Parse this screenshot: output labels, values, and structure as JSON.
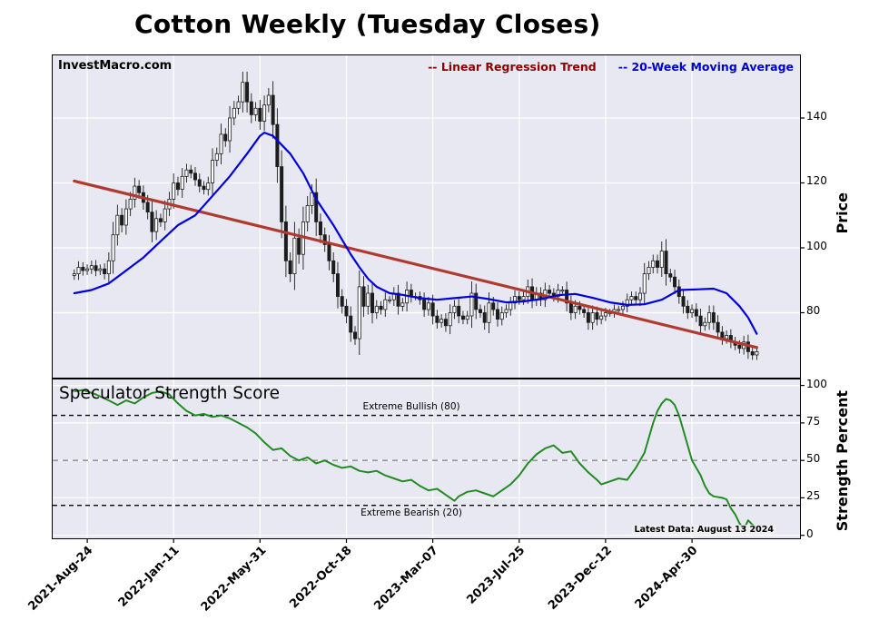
{
  "title": "Cotton Weekly (Tuesday Closes)",
  "watermark": "InvestMacro.com",
  "legend": {
    "trend_label": "-- Linear Regression Trend",
    "trend_color": "#8b0000",
    "ma_label": "-- 20-Week Moving Average",
    "ma_color": "#0000cd"
  },
  "axes": {
    "price_label": "Price",
    "strength_label": "Strength Percent"
  },
  "strength_panel": {
    "title": "Speculator Strength Score",
    "bullish_label": "Extreme Bullish (80)",
    "bearish_label": "Extreme Bearish (20)",
    "latest_note": "Latest Data: August 13 2024"
  },
  "colors": {
    "panel_bg": "#e8e8f2",
    "grid": "#ffffff",
    "candle_up": "#ffffff",
    "candle_down": "#1c1c1c",
    "tick": "#000000"
  },
  "chart_data": [
    {
      "type": "candlestick",
      "name": "Cotton weekly price (Tuesday closes)",
      "ylabel": "Price",
      "ylim": [
        60,
        159.3
      ],
      "yticks": [
        80,
        100,
        120,
        140
      ],
      "x_unit": "week-index",
      "x_tick_weeks": [
        3,
        23,
        43,
        63,
        83,
        103,
        123,
        143
      ],
      "x_tick_labels": [
        "2021-Aug-24",
        "2022-Jan-11",
        "2022-May-31",
        "2022-Oct-18",
        "2023-Mar-07",
        "2023-Jul-25",
        "2023-Dec-12",
        "2024-Apr-30"
      ],
      "closes": [
        92,
        94,
        93,
        93.5,
        94.5,
        93,
        93.5,
        92,
        96,
        104,
        110,
        107,
        112,
        115,
        119,
        117,
        114,
        111,
        105,
        109,
        108,
        112,
        115,
        120,
        118,
        122,
        124,
        123,
        121,
        119,
        118,
        120,
        127,
        129,
        135,
        133,
        140,
        143,
        145,
        151,
        145,
        141,
        143,
        139,
        144,
        147,
        138,
        125,
        108,
        96,
        92,
        103,
        98,
        108,
        113,
        117,
        108,
        104,
        101,
        96,
        92,
        85,
        82,
        79,
        74,
        72,
        88,
        82,
        86,
        80,
        82,
        81,
        84,
        84,
        86,
        82,
        83,
        87,
        85,
        85,
        84,
        81,
        83,
        79,
        77,
        78,
        76,
        80,
        82,
        79,
        78,
        79,
        86,
        81,
        80,
        77,
        83,
        81,
        78,
        80,
        81,
        83,
        85,
        84,
        85,
        88,
        84,
        86,
        84,
        87,
        86,
        85,
        87,
        87,
        83,
        80,
        82,
        81,
        80,
        77,
        80,
        78,
        79,
        80,
        80,
        81,
        81,
        82,
        84,
        85,
        84,
        86,
        92,
        94,
        96,
        94,
        99,
        92,
        91,
        88,
        85,
        82,
        80,
        81,
        79,
        76,
        77,
        80,
        77,
        74,
        72,
        73,
        71,
        70,
        69,
        71,
        68,
        67,
        68
      ],
      "overlays": [
        {
          "name": "Linear Regression Trend",
          "type": "line",
          "color": "#b03a2e",
          "width": 3.2,
          "points": [
            [
              0,
              120.6
            ],
            [
              158,
              69.3
            ]
          ]
        },
        {
          "name": "20-Week Moving Average",
          "type": "line",
          "color": "#0000dd",
          "width": 2.2,
          "points": [
            [
              0,
              86
            ],
            [
              4,
              87
            ],
            [
              8,
              89
            ],
            [
              12,
              93
            ],
            [
              16,
              97
            ],
            [
              20,
              102
            ],
            [
              24,
              107
            ],
            [
              28,
              110
            ],
            [
              32,
              116
            ],
            [
              36,
              122
            ],
            [
              40,
              129
            ],
            [
              43,
              134.5
            ],
            [
              44,
              135.5
            ],
            [
              46,
              134.5
            ],
            [
              50,
              129
            ],
            [
              53,
              123
            ],
            [
              56,
              115
            ],
            [
              60,
              107
            ],
            [
              64,
              98
            ],
            [
              66,
              94
            ],
            [
              68,
              90.5
            ],
            [
              70,
              88
            ],
            [
              73,
              86
            ],
            [
              76,
              85.5
            ],
            [
              80,
              84.5
            ],
            [
              84,
              84
            ],
            [
              88,
              84.5
            ],
            [
              92,
              85
            ],
            [
              96,
              84.2
            ],
            [
              100,
              83.2
            ],
            [
              104,
              83.5
            ],
            [
              108,
              84.2
            ],
            [
              112,
              85.4
            ],
            [
              116,
              85.8
            ],
            [
              120,
              84.6
            ],
            [
              124,
              83.2
            ],
            [
              128,
              82.4
            ],
            [
              132,
              82.6
            ],
            [
              136,
              84
            ],
            [
              140,
              87
            ],
            [
              144,
              87.2
            ],
            [
              148,
              87.4
            ],
            [
              151,
              86
            ],
            [
              154,
              82
            ],
            [
              156,
              78.5
            ],
            [
              158,
              73.5
            ]
          ]
        }
      ]
    },
    {
      "type": "line",
      "name": "Speculator Strength Score",
      "ylabel": "Strength Percent",
      "ylim": [
        -2,
        104
      ],
      "yticks": [
        0,
        25,
        50,
        75,
        100
      ],
      "thresholds": [
        {
          "value": 80,
          "label": "Extreme Bullish (80)",
          "color": "#000000",
          "dash": "5 4"
        },
        {
          "value": 50,
          "label": "",
          "color": "#888888",
          "dash": "6 5"
        },
        {
          "value": 20,
          "label": "Extreme Bearish (20)",
          "color": "#000000",
          "dash": "5 4"
        }
      ],
      "series": [
        {
          "name": "Speculator Strength Score",
          "color": "#228b22",
          "width": 2,
          "points": [
            [
              0,
              96
            ],
            [
              2,
              97
            ],
            [
              5,
              94
            ],
            [
              8,
              90
            ],
            [
              10,
              87
            ],
            [
              12,
              90
            ],
            [
              14,
              88
            ],
            [
              16,
              92
            ],
            [
              18,
              95
            ],
            [
              20,
              96
            ],
            [
              22,
              94
            ],
            [
              24,
              88
            ],
            [
              26,
              83
            ],
            [
              28,
              80
            ],
            [
              30,
              81
            ],
            [
              32,
              79
            ],
            [
              34,
              80
            ],
            [
              36,
              78
            ],
            [
              38,
              75
            ],
            [
              40,
              72
            ],
            [
              42,
              68
            ],
            [
              44,
              62
            ],
            [
              46,
              57
            ],
            [
              48,
              58
            ],
            [
              50,
              53
            ],
            [
              52,
              50
            ],
            [
              54,
              52
            ],
            [
              56,
              48
            ],
            [
              58,
              50
            ],
            [
              60,
              47
            ],
            [
              62,
              45
            ],
            [
              64,
              46
            ],
            [
              66,
              43
            ],
            [
              68,
              42
            ],
            [
              70,
              43
            ],
            [
              72,
              40
            ],
            [
              74,
              38
            ],
            [
              76,
              36
            ],
            [
              78,
              37
            ],
            [
              80,
              33
            ],
            [
              82,
              30
            ],
            [
              84,
              31
            ],
            [
              86,
              27
            ],
            [
              88,
              23
            ],
            [
              89,
              26
            ],
            [
              91,
              29
            ],
            [
              93,
              30
            ],
            [
              95,
              28
            ],
            [
              97,
              26
            ],
            [
              99,
              30
            ],
            [
              101,
              34
            ],
            [
              103,
              40
            ],
            [
              105,
              48
            ],
            [
              107,
              54
            ],
            [
              109,
              58
            ],
            [
              111,
              60
            ],
            [
              113,
              55
            ],
            [
              115,
              56
            ],
            [
              117,
              48
            ],
            [
              119,
              42
            ],
            [
              121,
              37
            ],
            [
              122,
              34
            ],
            [
              124,
              36
            ],
            [
              126,
              38
            ],
            [
              128,
              37
            ],
            [
              130,
              45
            ],
            [
              132,
              55
            ],
            [
              134,
              75
            ],
            [
              135,
              83
            ],
            [
              136,
              88
            ],
            [
              137,
              91
            ],
            [
              138,
              90
            ],
            [
              139,
              87
            ],
            [
              140,
              80
            ],
            [
              141,
              70
            ],
            [
              142,
              60
            ],
            [
              143,
              50
            ],
            [
              144,
              45
            ],
            [
              145,
              40
            ],
            [
              146,
              33
            ],
            [
              147,
              28
            ],
            [
              148,
              26
            ],
            [
              150,
              25
            ],
            [
              151,
              24
            ],
            [
              152,
              18
            ],
            [
              153,
              14
            ],
            [
              154,
              8
            ],
            [
              155,
              4
            ],
            [
              156,
              10
            ],
            [
              157,
              7
            ],
            [
              158,
              5
            ]
          ]
        }
      ]
    }
  ]
}
